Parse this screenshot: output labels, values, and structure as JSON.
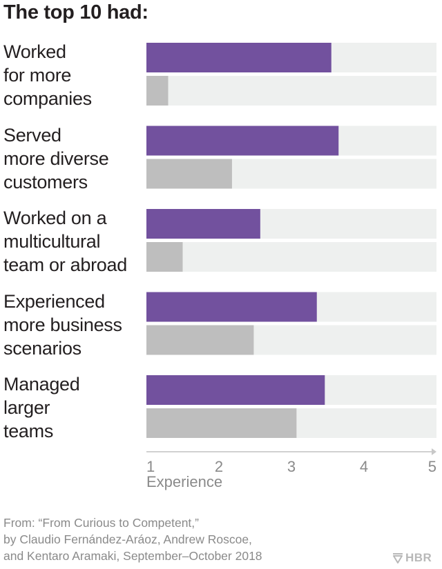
{
  "title": "The top 10 had:",
  "chart_data": {
    "type": "bar",
    "orientation": "horizontal",
    "title": "The top 10 had:",
    "xlabel": "Experience",
    "ylabel": "",
    "xlim": [
      1,
      5
    ],
    "xticks": [
      "1",
      "2",
      "3",
      "4",
      "5"
    ],
    "categories": [
      "Worked\nfor more\ncompanies",
      "Served\nmore diverse\ncustomers",
      "Worked on a\nmulticultural\nteam or abroad",
      "Experienced\nmore business\nscenarios",
      "Managed\nlarger\nteams"
    ],
    "series": [
      {
        "name": "",
        "color": "#72519e",
        "values": [
          3.55,
          3.65,
          2.57,
          3.35,
          3.46
        ]
      },
      {
        "name": "",
        "color": "#bebebe",
        "values": [
          1.3,
          2.18,
          1.5,
          2.48,
          3.07
        ]
      }
    ],
    "track_color": "#eef0ef",
    "grid": false,
    "legend": "none"
  },
  "source": "From: “From Curious to Competent,”\nby Claudio Fernández-Aráoz, Andrew Roscoe,\nand Kentaro Aramaki, September–October 2018",
  "logo": {
    "text": "HBR",
    "icon": "shield-icon"
  }
}
